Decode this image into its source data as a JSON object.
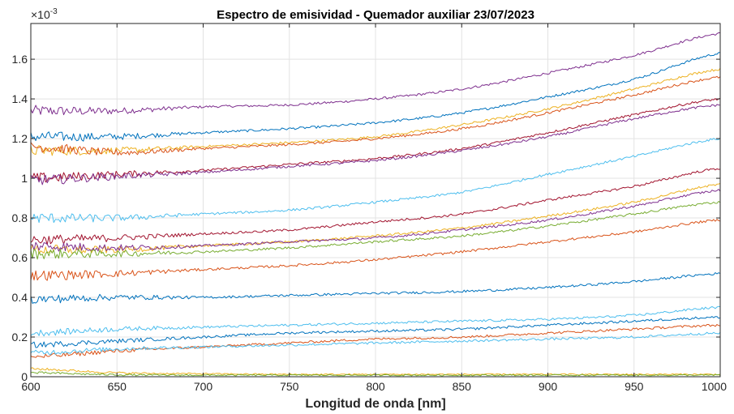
{
  "chart_data": {
    "type": "line",
    "title": "Espectro de emisividad - Quemador auxiliar 23/07/2023",
    "xlabel": "Longitud de onda [nm]",
    "ylabel": "",
    "y_exponent_label": "×10",
    "y_exponent_power": "-3",
    "xlim": [
      600,
      1000
    ],
    "ylim": [
      0,
      1.78
    ],
    "y_scale_factor": 0.001,
    "grid": true,
    "legend": "none",
    "x_ticks": [
      "600",
      "650",
      "700",
      "750",
      "800",
      "850",
      "900",
      "950",
      "1000"
    ],
    "y_ticks": [
      "0",
      "0.2",
      "0.4",
      "0.6",
      "0.8",
      "1",
      "1.2",
      "1.4",
      "1.6"
    ],
    "x": [
      600,
      650,
      700,
      750,
      800,
      850,
      900,
      950,
      1000
    ],
    "series": [
      {
        "values": [
          1.34,
          1.34,
          1.36,
          1.37,
          1.4,
          1.45,
          1.53,
          1.62,
          1.73
        ],
        "color": "#7E2F8E"
      },
      {
        "values": [
          1.21,
          1.21,
          1.23,
          1.25,
          1.28,
          1.33,
          1.41,
          1.5,
          1.63
        ],
        "color": "#0072BD"
      },
      {
        "values": [
          1.14,
          1.14,
          1.16,
          1.18,
          1.21,
          1.27,
          1.35,
          1.45,
          1.55
        ],
        "color": "#EDB120"
      },
      {
        "values": [
          1.16,
          1.13,
          1.15,
          1.17,
          1.2,
          1.25,
          1.33,
          1.42,
          1.51
        ],
        "color": "#D95319"
      },
      {
        "values": [
          1.0,
          1.02,
          1.04,
          1.07,
          1.1,
          1.15,
          1.23,
          1.32,
          1.4
        ],
        "color": "#A2142F"
      },
      {
        "values": [
          0.99,
          1.01,
          1.03,
          1.06,
          1.09,
          1.14,
          1.21,
          1.3,
          1.37
        ],
        "color": "#7E2F8E"
      },
      {
        "values": [
          0.8,
          0.8,
          0.82,
          0.84,
          0.88,
          0.93,
          1.02,
          1.11,
          1.2
        ],
        "color": "#4DBEEE"
      },
      {
        "values": [
          0.69,
          0.7,
          0.72,
          0.74,
          0.78,
          0.82,
          0.89,
          0.96,
          1.05
        ],
        "color": "#A2142F"
      },
      {
        "values": [
          0.64,
          0.64,
          0.66,
          0.68,
          0.71,
          0.75,
          0.81,
          0.88,
          0.97
        ],
        "color": "#EDB120"
      },
      {
        "values": [
          0.66,
          0.65,
          0.66,
          0.68,
          0.7,
          0.74,
          0.79,
          0.86,
          0.94
        ],
        "color": "#7E2F8E"
      },
      {
        "values": [
          0.62,
          0.62,
          0.63,
          0.65,
          0.68,
          0.71,
          0.76,
          0.82,
          0.88
        ],
        "color": "#77AC30"
      },
      {
        "values": [
          0.51,
          0.52,
          0.54,
          0.56,
          0.59,
          0.63,
          0.68,
          0.73,
          0.79
        ],
        "color": "#D95319"
      },
      {
        "values": [
          0.39,
          0.4,
          0.4,
          0.41,
          0.42,
          0.43,
          0.45,
          0.48,
          0.52
        ],
        "color": "#0072BD"
      },
      {
        "values": [
          0.22,
          0.24,
          0.25,
          0.26,
          0.27,
          0.28,
          0.29,
          0.31,
          0.35
        ],
        "color": "#4DBEEE"
      },
      {
        "values": [
          0.16,
          0.18,
          0.2,
          0.22,
          0.23,
          0.24,
          0.26,
          0.28,
          0.3
        ],
        "color": "#0072BD"
      },
      {
        "values": [
          0.1,
          0.13,
          0.15,
          0.17,
          0.19,
          0.2,
          0.22,
          0.24,
          0.26
        ],
        "color": "#D95319"
      },
      {
        "values": [
          0.12,
          0.14,
          0.15,
          0.16,
          0.17,
          0.18,
          0.19,
          0.2,
          0.22
        ],
        "color": "#4DBEEE"
      },
      {
        "values": [
          0.04,
          0.02,
          0.015,
          0.012,
          0.012,
          0.012,
          0.012,
          0.012,
          0.012
        ],
        "color": "#EDB120"
      },
      {
        "values": [
          0.02,
          0.01,
          0.008,
          0.008,
          0.008,
          0.008,
          0.008,
          0.008,
          0.008
        ],
        "color": "#77AC30"
      }
    ]
  }
}
